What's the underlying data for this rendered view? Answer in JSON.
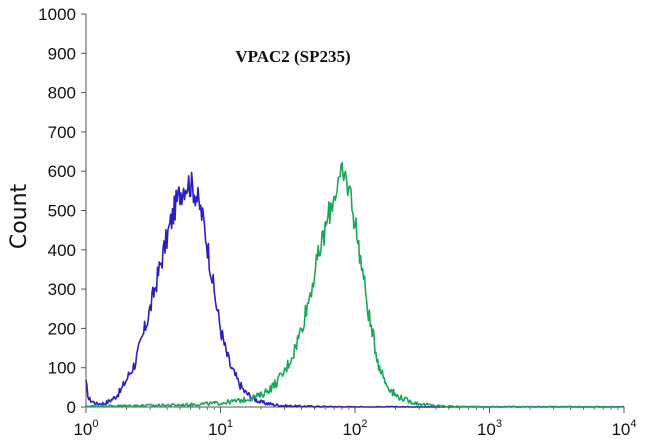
{
  "chart_data": {
    "type": "line",
    "title": "VPAC2 (SP235)",
    "xlabel": "",
    "ylabel": "Count",
    "x_scale": "log",
    "xlim": [
      1,
      10000
    ],
    "ylim": [
      0,
      1000
    ],
    "y_ticks": [
      0,
      100,
      200,
      300,
      400,
      500,
      600,
      700,
      800,
      900,
      1000
    ],
    "x_ticks": [
      {
        "value": 1,
        "base": "10",
        "exp": "0"
      },
      {
        "value": 10,
        "base": "10",
        "exp": "1"
      },
      {
        "value": 100,
        "base": "10",
        "exp": "2"
      },
      {
        "value": 1000,
        "base": "10",
        "exp": "3"
      },
      {
        "value": 10000,
        "base": "10",
        "exp": "4"
      }
    ],
    "grid": false,
    "legend": "none",
    "series": [
      {
        "color": "#2a1fc4",
        "x": [
          1.0,
          1.05,
          1.2,
          1.4,
          1.6,
          1.8,
          2.0,
          2.3,
          2.6,
          3.0,
          3.4,
          3.8,
          4.2,
          4.6,
          5.0,
          5.4,
          5.8,
          6.2,
          6.6,
          7.0,
          7.5,
          8.0,
          8.5,
          9.0,
          10.0,
          11.0,
          12.0,
          13.5,
          15.0,
          17.0,
          20.0,
          25.0,
          30.0,
          40.0,
          60.0,
          100.0,
          10000.0
        ],
        "y": [
          60,
          20,
          8,
          10,
          22,
          40,
          70,
          110,
          170,
          250,
          330,
          400,
          460,
          510,
          545,
          565,
          570,
          560,
          540,
          510,
          470,
          410,
          350,
          290,
          200,
          140,
          100,
          65,
          40,
          25,
          12,
          6,
          3,
          2,
          1,
          0,
          0
        ]
      },
      {
        "color": "#19a85a",
        "x": [
          1.0,
          5.0,
          10.0,
          15.0,
          20.0,
          25.0,
          30.0,
          35.0,
          40.0,
          45.0,
          50.0,
          55.0,
          60.0,
          65.0,
          70.0,
          75.0,
          80.0,
          85.0,
          90.0,
          95.0,
          100.0,
          110.0,
          120.0,
          130.0,
          150.0,
          170.0,
          200.0,
          250.0,
          300.0,
          400.0,
          600.0,
          1000.0,
          10000.0
        ],
        "y": [
          2,
          5,
          10,
          18,
          30,
          55,
          90,
          140,
          200,
          270,
          340,
          400,
          450,
          500,
          540,
          570,
          585,
          580,
          560,
          520,
          470,
          380,
          290,
          210,
          110,
          60,
          30,
          15,
          8,
          3,
          1,
          0,
          0
        ]
      }
    ]
  }
}
